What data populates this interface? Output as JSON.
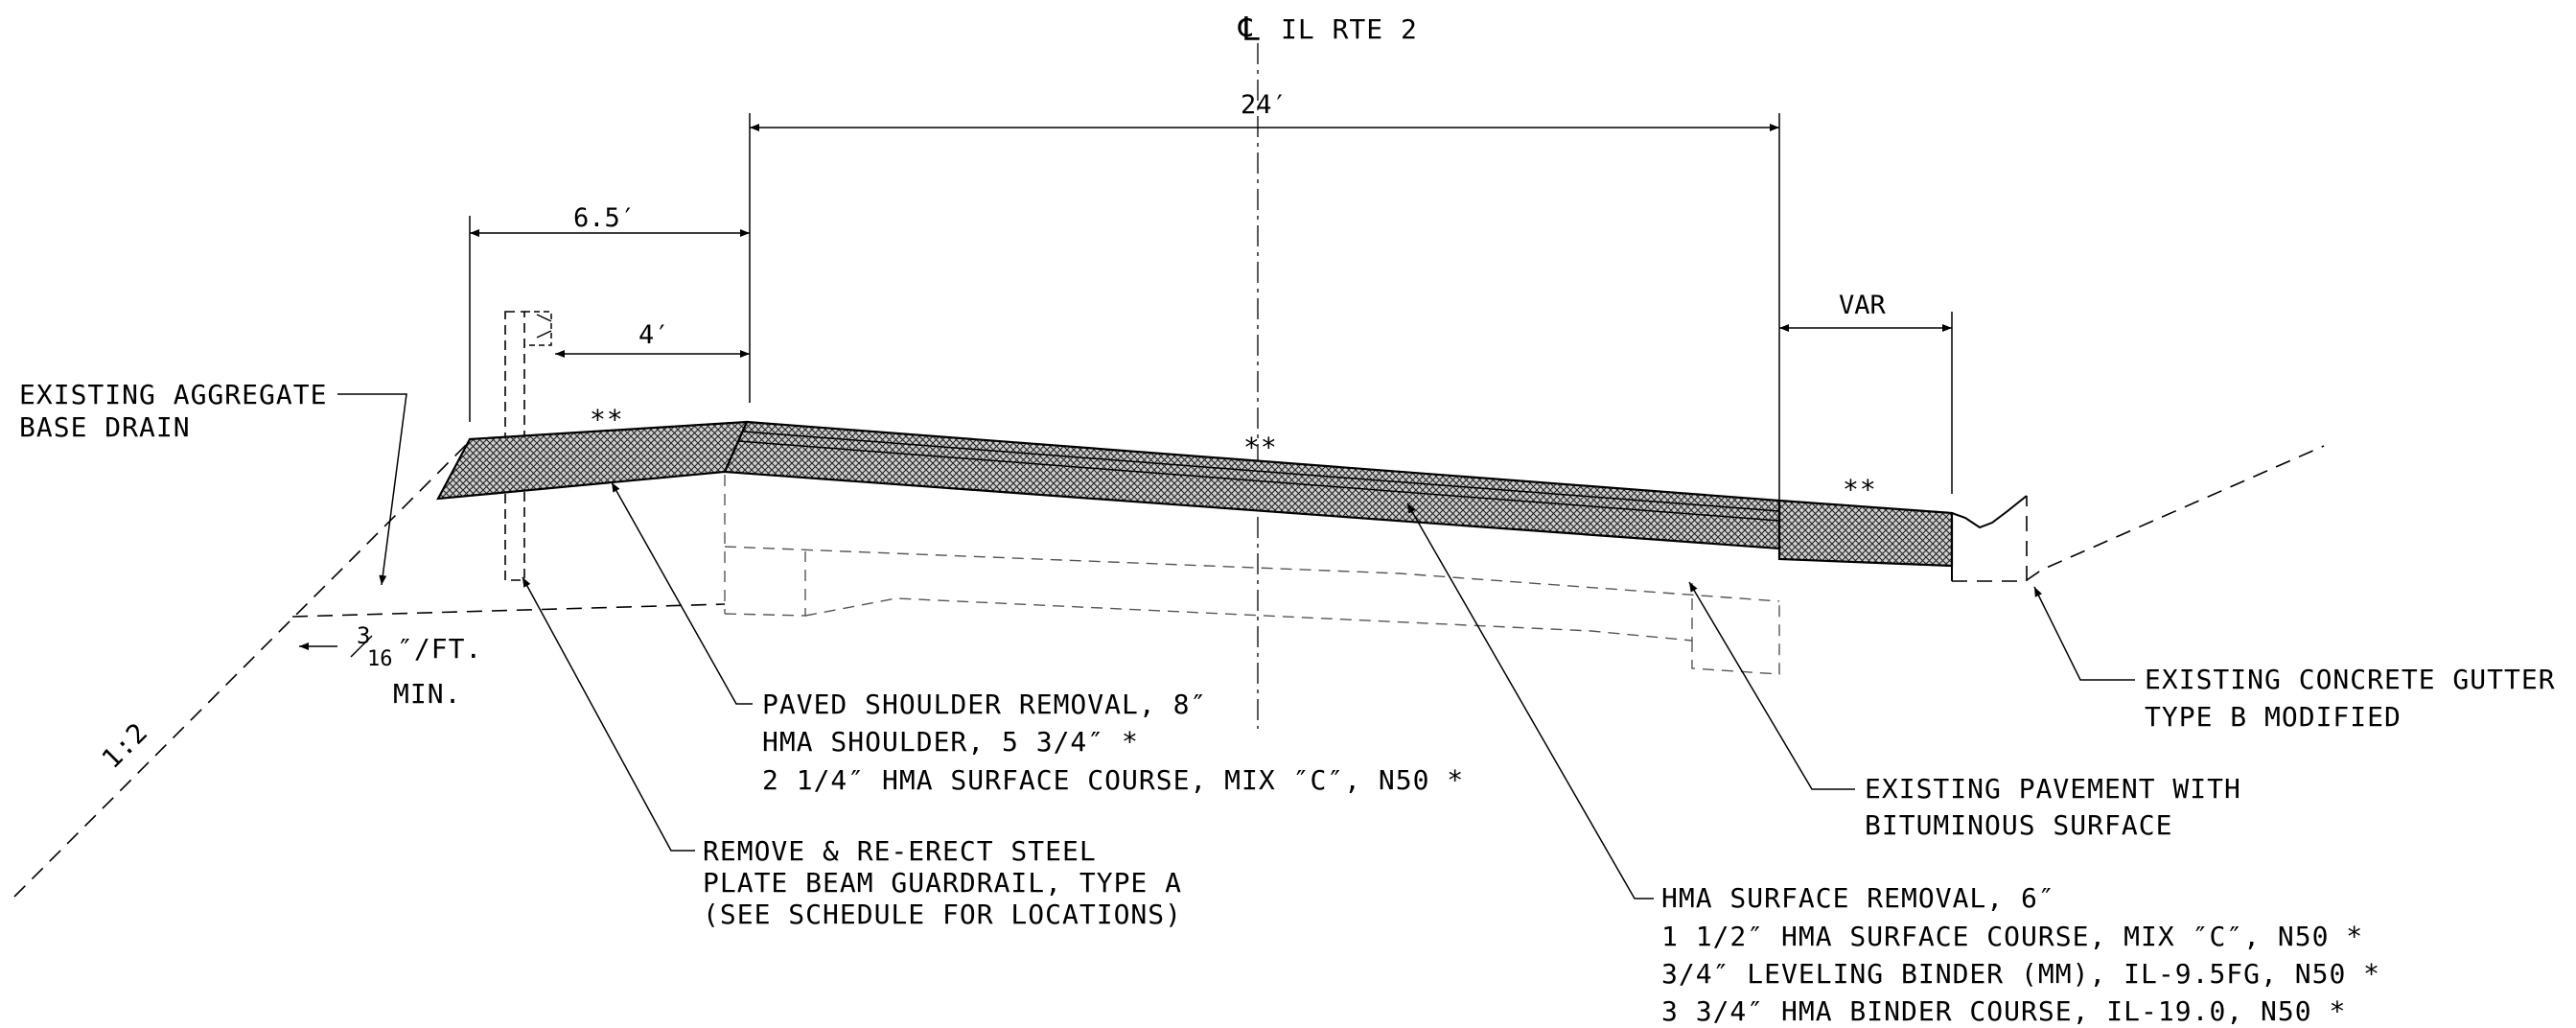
{
  "centerline": {
    "symbol": "℄",
    "label": "IL RTE 2"
  },
  "dimensions": {
    "lane_width": "24′",
    "shoulder_width": "6.5′",
    "paved_width": "4′",
    "gutter_width": "VAR"
  },
  "markers": {
    "double_asterisk": "**"
  },
  "slopes": {
    "embankment": "1:2",
    "base_slope_num": "3",
    "base_slope_den": "16",
    "base_slope_unit": "″/FT.",
    "base_slope_min": "MIN."
  },
  "callouts": {
    "aggregate_drain": [
      "EXISTING AGGREGATE",
      "BASE DRAIN"
    ],
    "guardrail": [
      "REMOVE & RE-ERECT STEEL",
      "PLATE BEAM GUARDRAIL, TYPE A",
      "(SEE SCHEDULE FOR LOCATIONS)"
    ],
    "shoulder": [
      "PAVED SHOULDER REMOVAL, 8″",
      "HMA SHOULDER, 5 3/4″ *",
      "2 1/4″ HMA SURFACE COURSE, MIX ″C″, N50 *"
    ],
    "surface": [
      "HMA SURFACE REMOVAL, 6″",
      "1 1/2″ HMA SURFACE COURSE, MIX ″C″, N50 *",
      "3/4″ LEVELING BINDER (MM), IL-9.5FG, N50 *",
      "3 3/4″ HMA BINDER COURSE, IL-19.0, N50 *"
    ],
    "pavement": [
      "EXISTING PAVEMENT WITH",
      "BITUMINOUS SURFACE"
    ],
    "gutter": [
      "EXISTING CONCRETE GUTTER",
      "TYPE B MODIFIED"
    ]
  }
}
